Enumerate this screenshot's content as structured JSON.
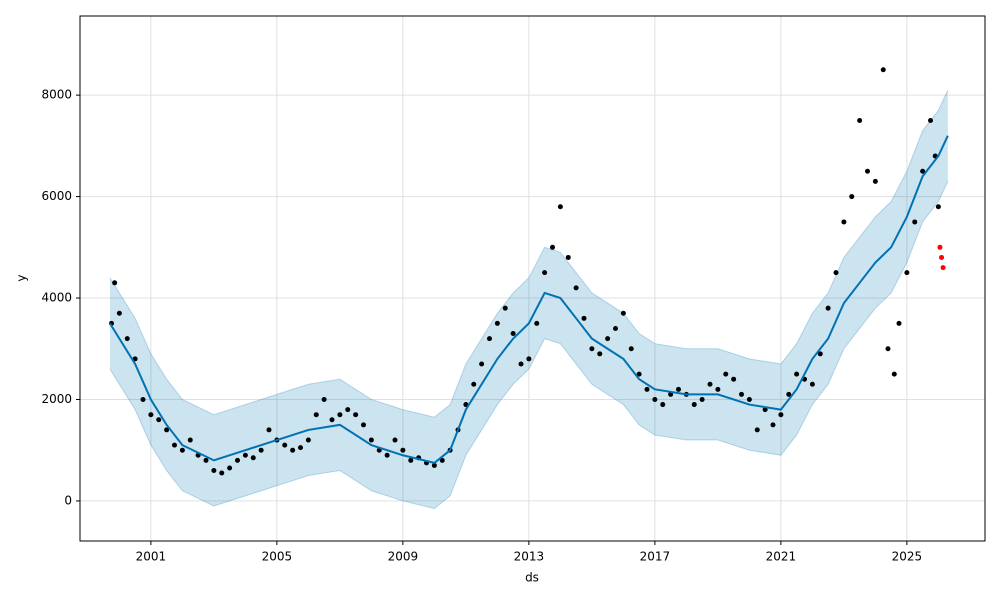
{
  "chart_data": {
    "type": "forecast",
    "xlabel": "ds",
    "ylabel": "y",
    "xlim": [
      1998.75,
      2027.48
    ],
    "ylim": [
      -790,
      9560
    ],
    "xticks": [
      2001,
      2005,
      2009,
      2013,
      2017,
      2021,
      2025
    ],
    "yticks": [
      0,
      2000,
      4000,
      6000,
      8000
    ],
    "grid": true,
    "observed": {
      "color": "#000000",
      "x": [
        1999.75,
        1999.85,
        2000.0,
        2000.25,
        2000.5,
        2000.75,
        2001.0,
        2001.25,
        2001.5,
        2001.75,
        2002.0,
        2002.25,
        2002.5,
        2002.75,
        2003.0,
        2003.25,
        2003.5,
        2003.75,
        2004.0,
        2004.25,
        2004.5,
        2004.75,
        2005.0,
        2005.25,
        2005.5,
        2005.75,
        2006.0,
        2006.25,
        2006.5,
        2006.75,
        2007.0,
        2007.25,
        2007.5,
        2007.75,
        2008.0,
        2008.25,
        2008.5,
        2008.75,
        2009.0,
        2009.25,
        2009.5,
        2009.75,
        2010.0,
        2010.25,
        2010.5,
        2010.75,
        2011.0,
        2011.25,
        2011.5,
        2011.75,
        2012.0,
        2012.25,
        2012.5,
        2012.75,
        2013.0,
        2013.25,
        2013.5,
        2013.75,
        2014.0,
        2014.25,
        2014.5,
        2014.75,
        2015.0,
        2015.25,
        2015.5,
        2015.75,
        2016.0,
        2016.25,
        2016.5,
        2016.75,
        2017.0,
        2017.25,
        2017.5,
        2017.75,
        2018.0,
        2018.25,
        2018.5,
        2018.75,
        2019.0,
        2019.25,
        2019.5,
        2019.75,
        2020.0,
        2020.25,
        2020.5,
        2020.75,
        2021.0,
        2021.25,
        2021.5,
        2021.75,
        2022.0,
        2022.25,
        2022.5,
        2022.75,
        2023.0,
        2023.25,
        2023.5,
        2023.75,
        2024.0,
        2024.25,
        2024.4,
        2024.6,
        2024.75,
        2025.0,
        2025.25,
        2025.5,
        2025.75,
        2025.9,
        2026.0
      ],
      "values": [
        3500,
        4300,
        3700,
        3200,
        2800,
        2000,
        1700,
        1600,
        1400,
        1100,
        1000,
        1200,
        900,
        800,
        600,
        550,
        650,
        800,
        900,
        850,
        1000,
        1400,
        1200,
        1100,
        1000,
        1050,
        1200,
        1700,
        2000,
        1600,
        1700,
        1800,
        1700,
        1500,
        1200,
        1000,
        900,
        1200,
        1000,
        800,
        850,
        750,
        700,
        800,
        1000,
        1400,
        1900,
        2300,
        2700,
        3200,
        3500,
        3800,
        3300,
        2700,
        2800,
        3500,
        4500,
        5000,
        5800,
        4800,
        4200,
        3600,
        3000,
        2900,
        3200,
        3400,
        3700,
        3000,
        2500,
        2200,
        2000,
        1900,
        2100,
        2200,
        2100,
        1900,
        2000,
        2300,
        2200,
        2500,
        2400,
        2100,
        2000,
        1400,
        1800,
        1500,
        1700,
        2100,
        2500,
        2400,
        2300,
        2900,
        3800,
        4500,
        5500,
        6000,
        7500,
        6500,
        6300,
        8500,
        3000,
        2500,
        3500,
        4500,
        5500,
        6500,
        7500,
        6800,
        5800
      ]
    },
    "test": {
      "color": "#ff0000",
      "x": [
        2026.05,
        2026.1,
        2026.15
      ],
      "values": [
        5000,
        4800,
        4600
      ]
    },
    "forecast": {
      "color": "#0072b2",
      "band_color": "#0072b2",
      "x": [
        1999.7,
        2000.5,
        2001,
        2001.5,
        2002,
        2003,
        2004,
        2005,
        2006,
        2007,
        2008,
        2009,
        2010,
        2010.5,
        2011,
        2012,
        2012.5,
        2013,
        2013.5,
        2014,
        2014.5,
        2015,
        2015.5,
        2016,
        2016.5,
        2017,
        2018,
        2019,
        2020,
        2021,
        2021.5,
        2022,
        2022.5,
        2023,
        2023.5,
        2024,
        2024.5,
        2025,
        2025.5,
        2026,
        2026.3
      ],
      "values": [
        3500,
        2700,
        2000,
        1500,
        1100,
        800,
        1000,
        1200,
        1400,
        1500,
        1100,
        900,
        750,
        1000,
        1800,
        2800,
        3200,
        3500,
        4100,
        4000,
        3600,
        3200,
        3000,
        2800,
        2400,
        2200,
        2100,
        2100,
        1900,
        1800,
        2200,
        2800,
        3200,
        3900,
        4300,
        4700,
        5000,
        5600,
        6400,
        6800,
        7200
      ],
      "lower": [
        2600,
        1800,
        1100,
        600,
        200,
        -100,
        100,
        300,
        500,
        600,
        200,
        0,
        -150,
        100,
        900,
        1900,
        2300,
        2600,
        3200,
        3100,
        2700,
        2300,
        2100,
        1900,
        1500,
        1300,
        1200,
        1200,
        1000,
        900,
        1300,
        1900,
        2300,
        3000,
        3400,
        3800,
        4100,
        4700,
        5500,
        5900,
        6300
      ],
      "upper": [
        4400,
        3600,
        2900,
        2400,
        2000,
        1700,
        1900,
        2100,
        2300,
        2400,
        2000,
        1800,
        1650,
        1900,
        2700,
        3700,
        4100,
        4400,
        5000,
        4900,
        4500,
        4100,
        3900,
        3700,
        3300,
        3100,
        3000,
        3000,
        2800,
        2700,
        3100,
        3700,
        4100,
        4800,
        5200,
        5600,
        5900,
        6500,
        7300,
        7700,
        8100
      ]
    }
  }
}
